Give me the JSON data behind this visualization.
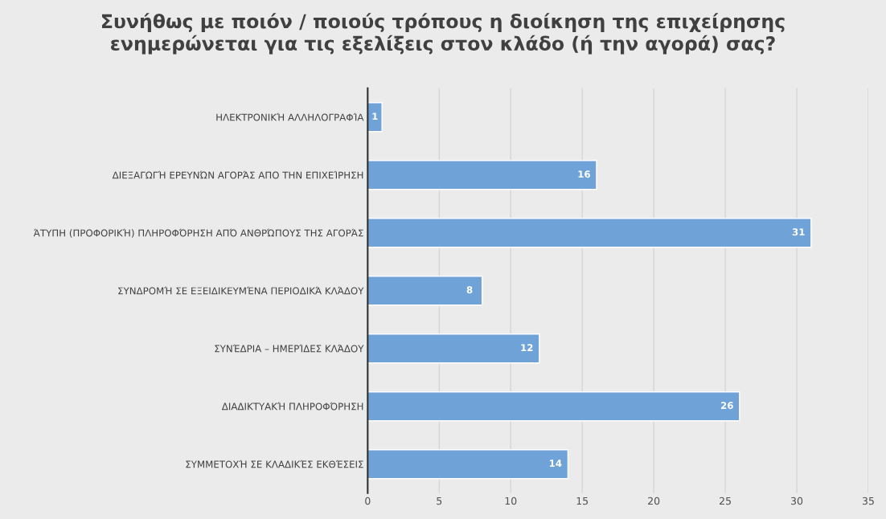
{
  "chart_data": {
    "type": "bar",
    "orientation": "horizontal",
    "title": "Συνήθως με ποιόν / ποιούς τρόπους η διοίκηση της επιχείρησης\nενημερώνεται για τις εξελίξεις στον κλάδο (ή την αγορά) σας?",
    "categories": [
      "ΗΛΕΚΤΡΟΝΙΚΉ ΑΛΛΗΛΟΓΡΑΦΊΑ",
      "ΔΙΕΞΑΓΩΓΉ ΕΡΕΥΝΏΝ ΑΓΟΡΆΣ ΑΠΟ ΤΗΝ ΕΠΙΧΕΊΡΗΣΗ",
      "ΆΤΥΠΗ (ΠΡΟΦΟΡΙΚΉ) ΠΛΗΡΟΦΌΡΗΣΗ ΑΠΌ ΑΝΘΡΏΠΟΥΣ ΤΗΣ ΑΓΟΡΆΣ",
      "ΣΥΝΔΡΟΜΉ ΣΕ ΕΞΕΙΔΙΚΕΥΜΈΝΑ ΠΕΡΙΟΔΙΚΆ ΚΛΆΔΟΥ",
      "ΣΥΝΈΔΡΙΑ – ΗΜΕΡΊΔΕΣ ΚΛΆΔΟΥ",
      "ΔΙΑΔΙΚΤΥΑΚΉ ΠΛΗΡΟΦΌΡΗΣΗ",
      "ΣΥΜΜΕΤΟΧΉ ΣΕ ΚΛΑΔΙΚΈΣ ΕΚΘΈΣΕΙΣ"
    ],
    "values": [
      1,
      16,
      31,
      8,
      12,
      26,
      14
    ],
    "color": "#6fa3d8",
    "xlim": [
      0,
      35
    ],
    "xticks": [
      0,
      5,
      10,
      15,
      20,
      25,
      30,
      35
    ],
    "grid": "x",
    "data_labels": true
  }
}
